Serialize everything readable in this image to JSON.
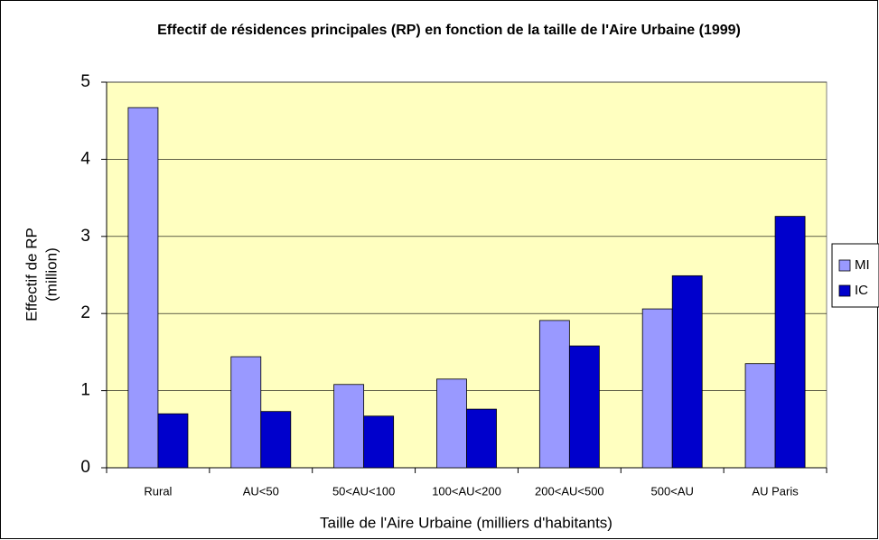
{
  "chart_data": {
    "type": "bar",
    "title": "Effectif de résidences principales (RP) en fonction de la taille de l'Aire Urbaine (1999)",
    "xlabel": "Taille de l'Aire Urbaine (milliers d'habitants)",
    "ylabel": [
      "Effectif de RP",
      "(million)"
    ],
    "categories": [
      "Rural",
      "AU<50",
      "50<AU<100",
      "100<AU<200",
      "200<AU<500",
      "500<AU",
      "AU Paris"
    ],
    "series": [
      {
        "name": "MI",
        "color": "#9999ff",
        "values": [
          4.67,
          1.44,
          1.08,
          1.15,
          1.91,
          2.06,
          1.35
        ]
      },
      {
        "name": "IC",
        "color": "#0000cc",
        "values": [
          0.7,
          0.73,
          0.67,
          0.76,
          1.58,
          2.49,
          3.26
        ]
      }
    ],
    "ylim": [
      0,
      5
    ],
    "yticks": [
      0,
      1,
      2,
      3,
      4,
      5
    ],
    "grid": true,
    "legend": "right"
  }
}
